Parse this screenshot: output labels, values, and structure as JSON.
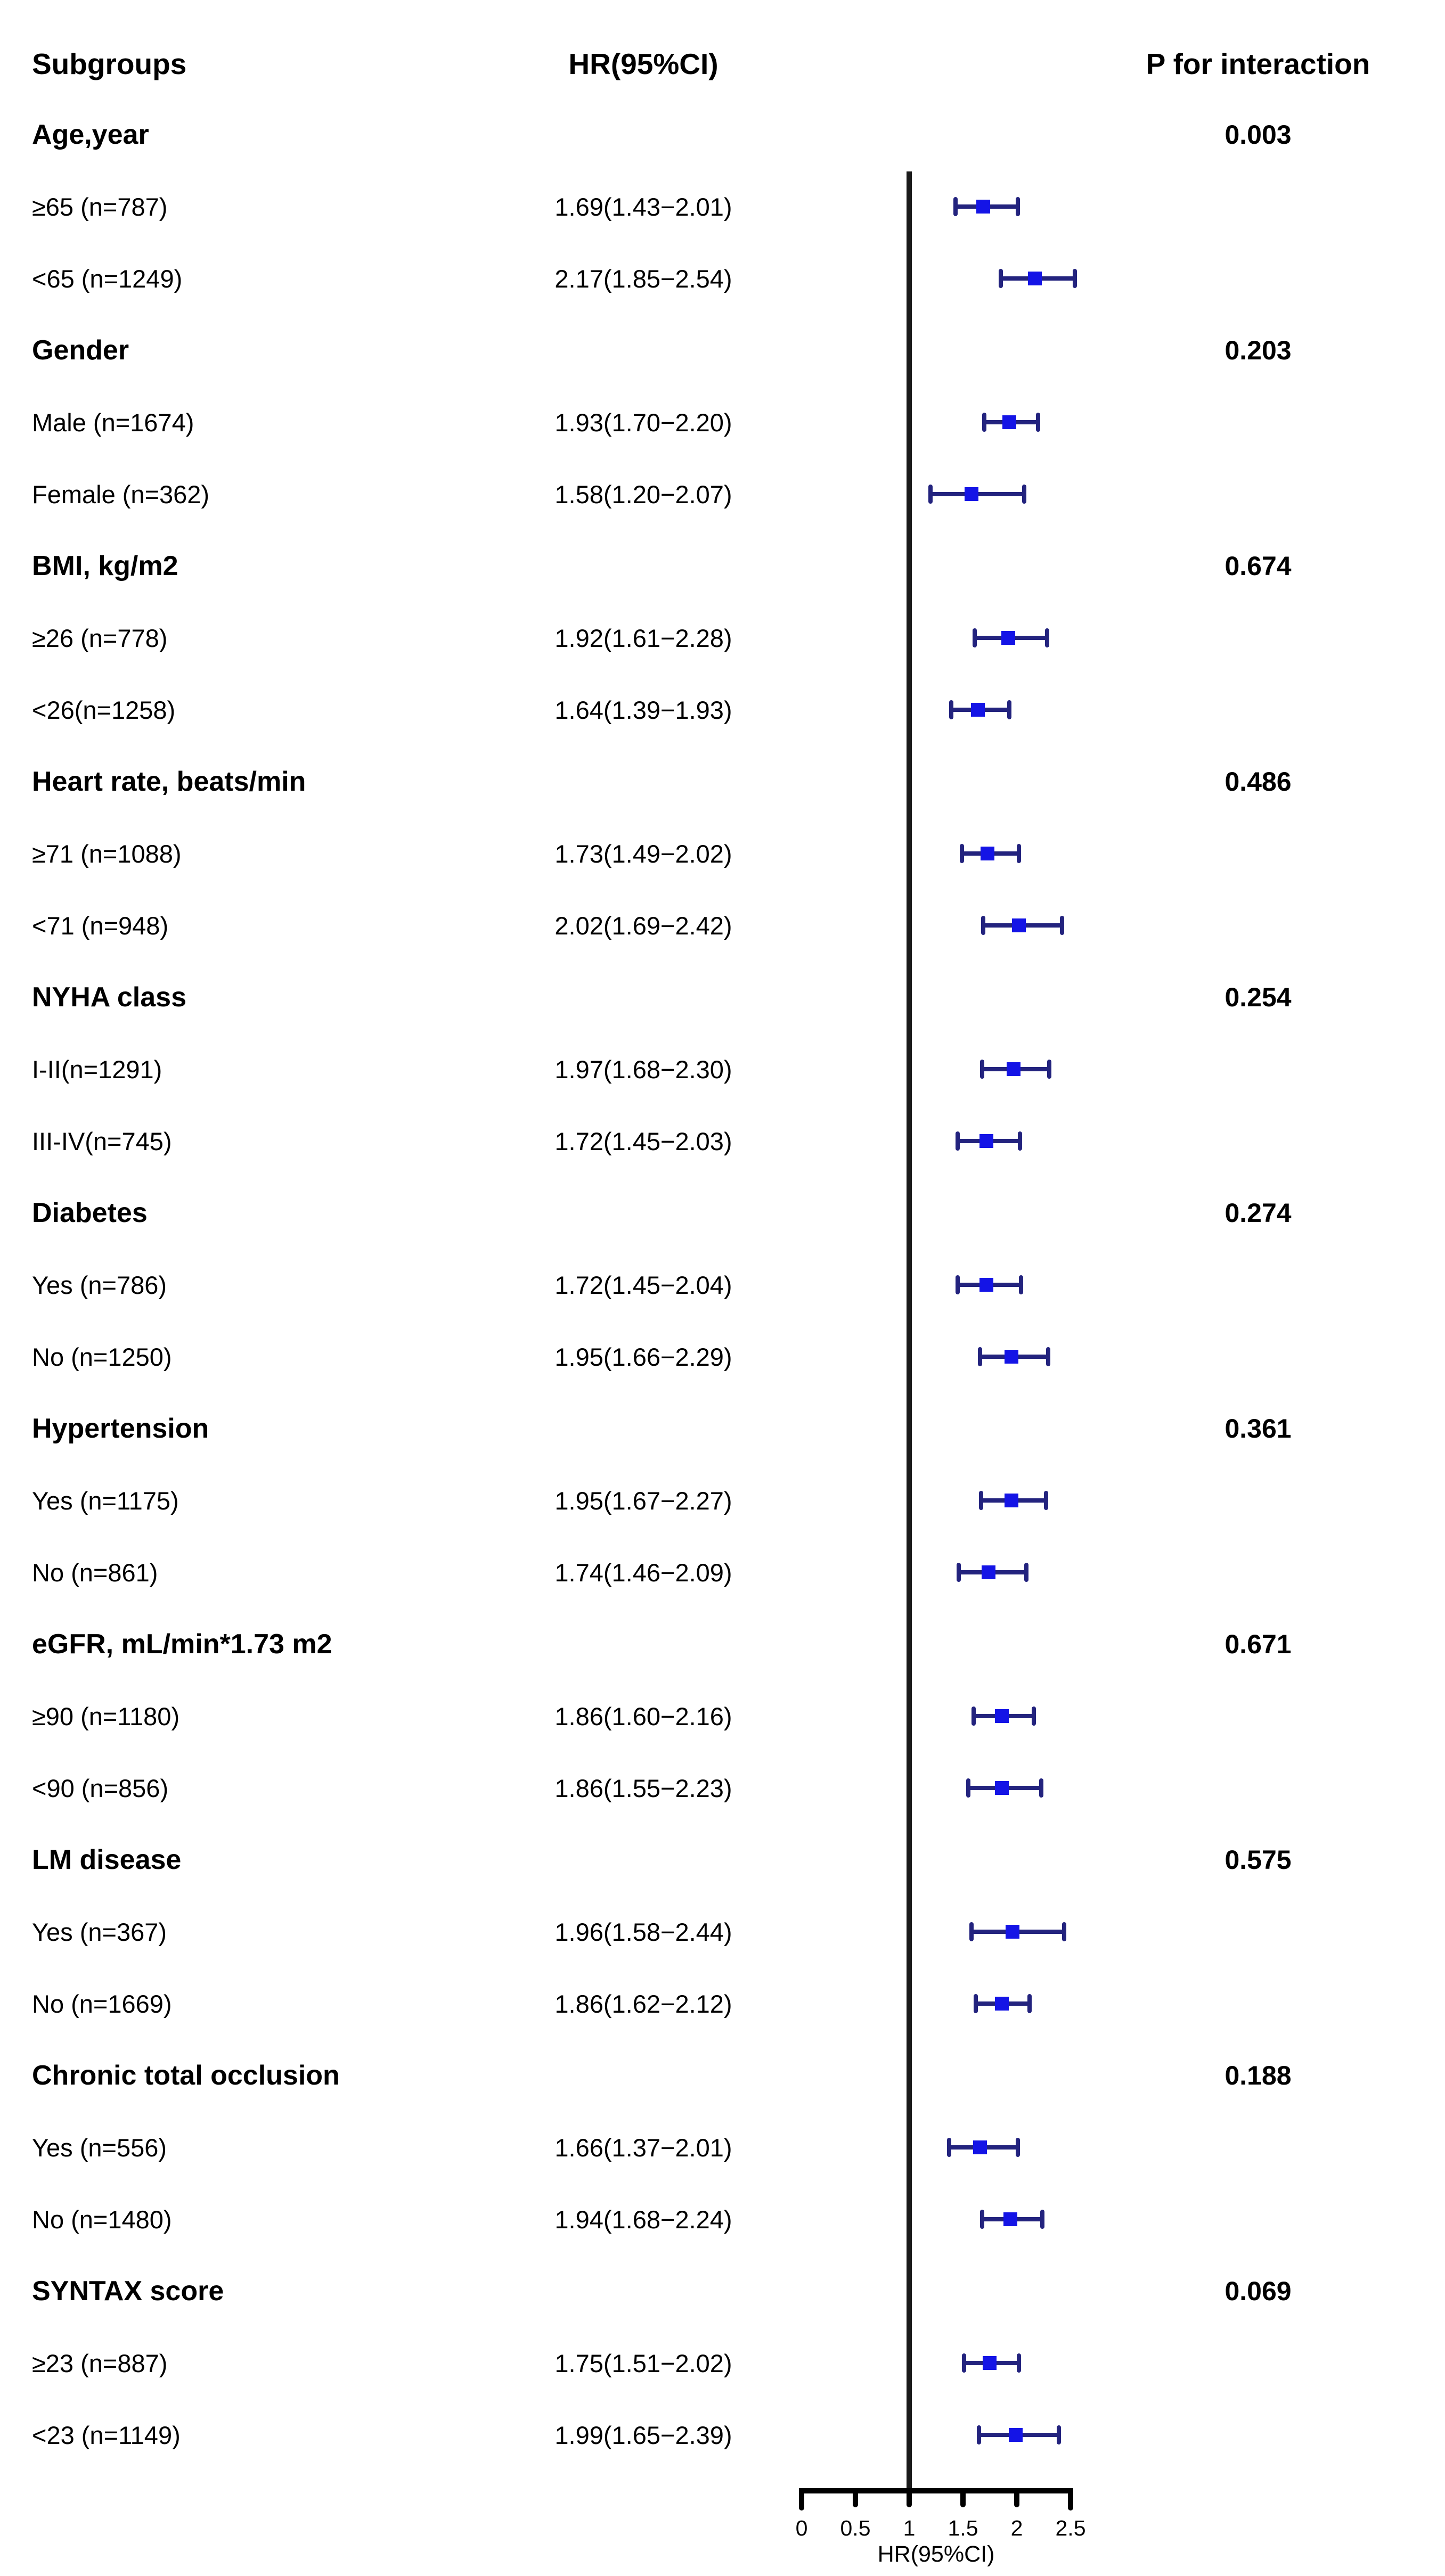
{
  "header": {
    "subgroups": "Subgroups",
    "hr_ci": "HR(95%CI)",
    "p_interaction": "P for interaction"
  },
  "colors": {
    "marker_square": "#1414e6",
    "ci_bar": "#23237e",
    "reference_line": "#1a1a1a",
    "axis": "#000000",
    "text": "#000000"
  },
  "chart_data": {
    "type": "forest",
    "xlabel": "HR(95%CI)",
    "xlim": [
      0,
      2.5
    ],
    "x_ticks": [
      0,
      0.5,
      1,
      1.5,
      2,
      2.5
    ],
    "x_tick_labels": [
      "0",
      "0.5",
      "1",
      "1.5",
      "2",
      "2.5"
    ],
    "reference_line": 1,
    "rows": [
      {
        "kind": "group",
        "label": "Age,year",
        "p": "0.003"
      },
      {
        "kind": "item",
        "label": "≥65 (n=787)",
        "hr_ci": "1.69(1.43−2.01)",
        "hr": 1.69,
        "lo": 1.43,
        "hi": 2.01
      },
      {
        "kind": "item",
        "label": "<65 (n=1249)",
        "hr_ci": "2.17(1.85−2.54)",
        "hr": 2.17,
        "lo": 1.85,
        "hi": 2.54
      },
      {
        "kind": "group",
        "label": "Gender",
        "p": "0.203"
      },
      {
        "kind": "item",
        "label": "Male (n=1674)",
        "hr_ci": "1.93(1.70−2.20)",
        "hr": 1.93,
        "lo": 1.7,
        "hi": 2.2
      },
      {
        "kind": "item",
        "label": "Female (n=362)",
        "hr_ci": "1.58(1.20−2.07)",
        "hr": 1.58,
        "lo": 1.2,
        "hi": 2.07
      },
      {
        "kind": "group",
        "label": "BMI, kg/m2",
        "p": "0.674"
      },
      {
        "kind": "item",
        "label": "≥26 (n=778)",
        "hr_ci": "1.92(1.61−2.28)",
        "hr": 1.92,
        "lo": 1.61,
        "hi": 2.28
      },
      {
        "kind": "item",
        "label": "<26(n=1258)",
        "hr_ci": "1.64(1.39−1.93)",
        "hr": 1.64,
        "lo": 1.39,
        "hi": 1.93
      },
      {
        "kind": "group",
        "label": "Heart rate, beats/min",
        "p": "0.486"
      },
      {
        "kind": "item",
        "label": "≥71 (n=1088)",
        "hr_ci": "1.73(1.49−2.02)",
        "hr": 1.73,
        "lo": 1.49,
        "hi": 2.02
      },
      {
        "kind": "item",
        "label": "<71 (n=948)",
        "hr_ci": "2.02(1.69−2.42)",
        "hr": 2.02,
        "lo": 1.69,
        "hi": 2.42
      },
      {
        "kind": "group",
        "label": "NYHA class",
        "p": "0.254"
      },
      {
        "kind": "item",
        "label": "I-II(n=1291)",
        "hr_ci": "1.97(1.68−2.30)",
        "hr": 1.97,
        "lo": 1.68,
        "hi": 2.3
      },
      {
        "kind": "item",
        "label": "III-IV(n=745)",
        "hr_ci": "1.72(1.45−2.03)",
        "hr": 1.72,
        "lo": 1.45,
        "hi": 2.03
      },
      {
        "kind": "group",
        "label": "Diabetes",
        "p": "0.274"
      },
      {
        "kind": "item",
        "label": "Yes (n=786)",
        "hr_ci": "1.72(1.45−2.04)",
        "hr": 1.72,
        "lo": 1.45,
        "hi": 2.04
      },
      {
        "kind": "item",
        "label": "No (n=1250)",
        "hr_ci": "1.95(1.66−2.29)",
        "hr": 1.95,
        "lo": 1.66,
        "hi": 2.29
      },
      {
        "kind": "group",
        "label": "Hypertension",
        "p": "0.361"
      },
      {
        "kind": "item",
        "label": "Yes (n=1175)",
        "hr_ci": "1.95(1.67−2.27)",
        "hr": 1.95,
        "lo": 1.67,
        "hi": 2.27
      },
      {
        "kind": "item",
        "label": "No (n=861)",
        "hr_ci": "1.74(1.46−2.09)",
        "hr": 1.74,
        "lo": 1.46,
        "hi": 2.09
      },
      {
        "kind": "group",
        "label": "eGFR, mL/min*1.73 m2",
        "p": "0.671"
      },
      {
        "kind": "item",
        "label": "≥90 (n=1180)",
        "hr_ci": "1.86(1.60−2.16)",
        "hr": 1.86,
        "lo": 1.6,
        "hi": 2.16
      },
      {
        "kind": "item",
        "label": "<90 (n=856)",
        "hr_ci": "1.86(1.55−2.23)",
        "hr": 1.86,
        "lo": 1.55,
        "hi": 2.23
      },
      {
        "kind": "group",
        "label": "LM disease",
        "p": "0.575"
      },
      {
        "kind": "item",
        "label": "Yes (n=367)",
        "hr_ci": "1.96(1.58−2.44)",
        "hr": 1.96,
        "lo": 1.58,
        "hi": 2.44
      },
      {
        "kind": "item",
        "label": "No (n=1669)",
        "hr_ci": "1.86(1.62−2.12)",
        "hr": 1.86,
        "lo": 1.62,
        "hi": 2.12
      },
      {
        "kind": "group",
        "label": "Chronic total occlusion",
        "p": "0.188"
      },
      {
        "kind": "item",
        "label": "Yes (n=556)",
        "hr_ci": "1.66(1.37−2.01)",
        "hr": 1.66,
        "lo": 1.37,
        "hi": 2.01
      },
      {
        "kind": "item",
        "label": "No (n=1480)",
        "hr_ci": "1.94(1.68−2.24)",
        "hr": 1.94,
        "lo": 1.68,
        "hi": 2.24
      },
      {
        "kind": "group",
        "label": "SYNTAX score",
        "p": "0.069"
      },
      {
        "kind": "item",
        "label": "≥23 (n=887)",
        "hr_ci": "1.75(1.51−2.02)",
        "hr": 1.75,
        "lo": 1.51,
        "hi": 2.02
      },
      {
        "kind": "item",
        "label": "<23 (n=1149)",
        "hr_ci": "1.99(1.65−2.39)",
        "hr": 1.99,
        "lo": 1.65,
        "hi": 2.39
      }
    ]
  }
}
